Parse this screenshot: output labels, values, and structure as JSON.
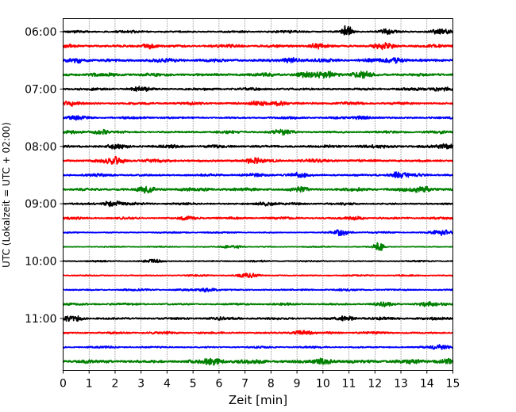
{
  "chart_data": {
    "type": "line",
    "chart_kind": "seismogram-helicorder",
    "xlabel": "Zeit  [min]",
    "ylabel": "UTC (Lokalzeit = UTC + 02:00)",
    "xlim": [
      0,
      15
    ],
    "x_ticks": [
      "0",
      "1",
      "2",
      "3",
      "4",
      "5",
      "6",
      "7",
      "8",
      "9",
      "10",
      "11",
      "12",
      "13",
      "14",
      "15"
    ],
    "y_tick_labels": [
      "06:00",
      "07:00",
      "08:00",
      "09:00",
      "10:00",
      "11:00"
    ],
    "grid": "vertical dotted lines at each minute",
    "legend": "none",
    "trace_colors": [
      "#000000",
      "#ff0000",
      "#0000ff",
      "#008000"
    ],
    "traces": [
      {
        "start": "06:00",
        "color": "black",
        "base_amp": 0.6,
        "bursts": [
          {
            "t": 10.95,
            "amp": 4.5
          },
          {
            "t": 12.5,
            "amp": 1.3
          },
          {
            "t": 14.5,
            "amp": 1.1
          }
        ]
      },
      {
        "start": "06:15",
        "color": "red",
        "base_amp": 0.8,
        "bursts": [
          {
            "t": 3.3,
            "amp": 1.2
          },
          {
            "t": 9.8,
            "amp": 1.2
          },
          {
            "t": 12.3,
            "amp": 1.4
          }
        ]
      },
      {
        "start": "06:30",
        "color": "blue",
        "base_amp": 0.9,
        "bursts": [
          {
            "t": 0.5,
            "amp": 1.3
          },
          {
            "t": 8.8,
            "amp": 1.2
          },
          {
            "t": 12.8,
            "amp": 1.2
          }
        ]
      },
      {
        "start": "06:45",
        "color": "green",
        "base_amp": 0.9,
        "bursts": [
          {
            "t": 9.3,
            "amp": 1.3
          },
          {
            "t": 10.2,
            "amp": 1.5
          },
          {
            "t": 11.5,
            "amp": 1.6
          }
        ]
      },
      {
        "start": "07:00",
        "color": "black",
        "base_amp": 0.7,
        "bursts": [
          {
            "t": 3.0,
            "amp": 1.3
          },
          {
            "t": 14.5,
            "amp": 1.0
          }
        ]
      },
      {
        "start": "07:15",
        "color": "red",
        "base_amp": 0.7,
        "bursts": [
          {
            "t": 0.3,
            "amp": 1.1
          },
          {
            "t": 7.6,
            "amp": 1.4
          },
          {
            "t": 8.3,
            "amp": 1.2
          }
        ]
      },
      {
        "start": "07:30",
        "color": "blue",
        "base_amp": 0.6,
        "bursts": [
          {
            "t": 0.5,
            "amp": 1.0
          },
          {
            "t": 11.5,
            "amp": 1.1
          }
        ]
      },
      {
        "start": "07:45",
        "color": "green",
        "base_amp": 0.7,
        "bursts": [
          {
            "t": 1.5,
            "amp": 1.0
          },
          {
            "t": 8.5,
            "amp": 1.0
          }
        ]
      },
      {
        "start": "08:00",
        "color": "black",
        "base_amp": 0.8,
        "bursts": [
          {
            "t": 2.1,
            "amp": 1.1
          },
          {
            "t": 14.8,
            "amp": 1.3
          }
        ]
      },
      {
        "start": "08:15",
        "color": "red",
        "base_amp": 0.8,
        "bursts": [
          {
            "t": 2.0,
            "amp": 1.5
          },
          {
            "t": 7.3,
            "amp": 1.4
          }
        ]
      },
      {
        "start": "08:30",
        "color": "blue",
        "base_amp": 0.7,
        "bursts": [
          {
            "t": 9.0,
            "amp": 1.0
          },
          {
            "t": 12.9,
            "amp": 1.5
          }
        ]
      },
      {
        "start": "08:45",
        "color": "green",
        "base_amp": 0.9,
        "bursts": [
          {
            "t": 3.2,
            "amp": 1.4
          },
          {
            "t": 9.1,
            "amp": 1.2
          },
          {
            "t": 13.8,
            "amp": 1.4
          }
        ]
      },
      {
        "start": "09:00",
        "color": "black",
        "base_amp": 0.6,
        "bursts": [
          {
            "t": 1.9,
            "amp": 1.5
          },
          {
            "t": 7.8,
            "amp": 1.0
          }
        ]
      },
      {
        "start": "09:15",
        "color": "red",
        "base_amp": 0.6,
        "bursts": [
          {
            "t": 4.8,
            "amp": 1.0
          },
          {
            "t": 11.2,
            "amp": 1.0
          }
        ]
      },
      {
        "start": "09:30",
        "color": "blue",
        "base_amp": 0.4,
        "bursts": [
          {
            "t": 10.7,
            "amp": 1.6
          },
          {
            "t": 14.6,
            "amp": 1.6
          }
        ]
      },
      {
        "start": "09:45",
        "color": "green",
        "base_amp": 0.3,
        "bursts": [
          {
            "t": 6.5,
            "amp": 1.0
          },
          {
            "t": 12.15,
            "amp": 3.5
          }
        ]
      },
      {
        "start": "10:00",
        "color": "black",
        "base_amp": 0.4,
        "bursts": [
          {
            "t": 3.5,
            "amp": 0.8
          }
        ]
      },
      {
        "start": "10:15",
        "color": "red",
        "base_amp": 0.4,
        "bursts": [
          {
            "t": 7.1,
            "amp": 1.2
          }
        ]
      },
      {
        "start": "10:30",
        "color": "blue",
        "base_amp": 0.5,
        "bursts": [
          {
            "t": 5.6,
            "amp": 1.0
          }
        ]
      },
      {
        "start": "10:45",
        "color": "green",
        "base_amp": 0.6,
        "bursts": [
          {
            "t": 12.3,
            "amp": 1.3
          },
          {
            "t": 14.0,
            "amp": 1.1
          }
        ]
      },
      {
        "start": "11:00",
        "color": "black",
        "base_amp": 0.7,
        "bursts": [
          {
            "t": 0.4,
            "amp": 1.3
          },
          {
            "t": 10.9,
            "amp": 1.1
          }
        ]
      },
      {
        "start": "11:15",
        "color": "red",
        "base_amp": 0.6,
        "bursts": [
          {
            "t": 9.2,
            "amp": 1.1
          }
        ]
      },
      {
        "start": "11:30",
        "color": "blue",
        "base_amp": 0.5,
        "bursts": [
          {
            "t": 14.5,
            "amp": 1.2
          }
        ]
      },
      {
        "start": "11:45",
        "color": "green",
        "base_amp": 1.0,
        "bursts": [
          {
            "t": 5.8,
            "amp": 1.5
          },
          {
            "t": 10.0,
            "amp": 1.6
          },
          {
            "t": 14.8,
            "amp": 1.3
          }
        ]
      }
    ]
  }
}
